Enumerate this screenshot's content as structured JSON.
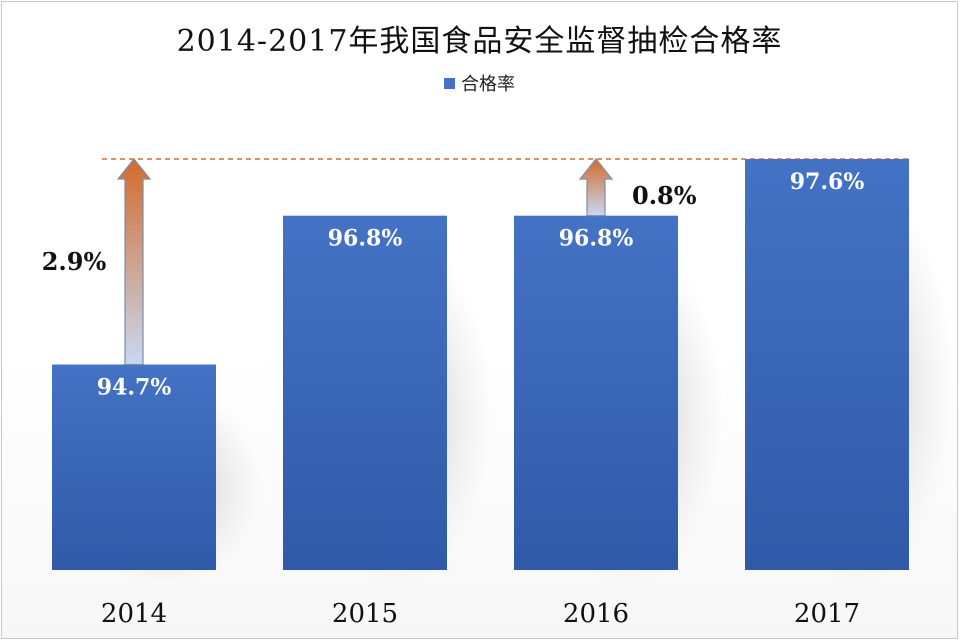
{
  "chart_data": {
    "type": "bar",
    "title": "2014-2017年我国食品安全监督抽检合格率",
    "categories": [
      "2014",
      "2015",
      "2016",
      "2017"
    ],
    "series": [
      {
        "name": "合格率",
        "values": [
          94.7,
          96.8,
          96.8,
          97.6
        ],
        "labels": [
          "94.7%",
          "96.8%",
          "96.8%",
          "97.6%"
        ]
      }
    ],
    "ylim": [
      91.8,
      97.6
    ],
    "legend_position": "top-center",
    "grid": false,
    "annotations": [
      {
        "text": "2.9%",
        "from_category": "2014",
        "from_value": 94.7,
        "to_value": 97.6
      },
      {
        "text": "0.8%",
        "from_category": "2016",
        "from_value": 96.8,
        "to_value": 97.6
      }
    ],
    "reference_line": {
      "value": 97.6,
      "style": "dashed"
    },
    "colors": {
      "bar": "#4472c4",
      "bar_dark": "#2f5aa8",
      "arrow_top": "#d36b2c",
      "arrow_bottom": "#c9d8f2",
      "reference_line": "#d36b2c",
      "bar_label": "#ffffff"
    }
  }
}
